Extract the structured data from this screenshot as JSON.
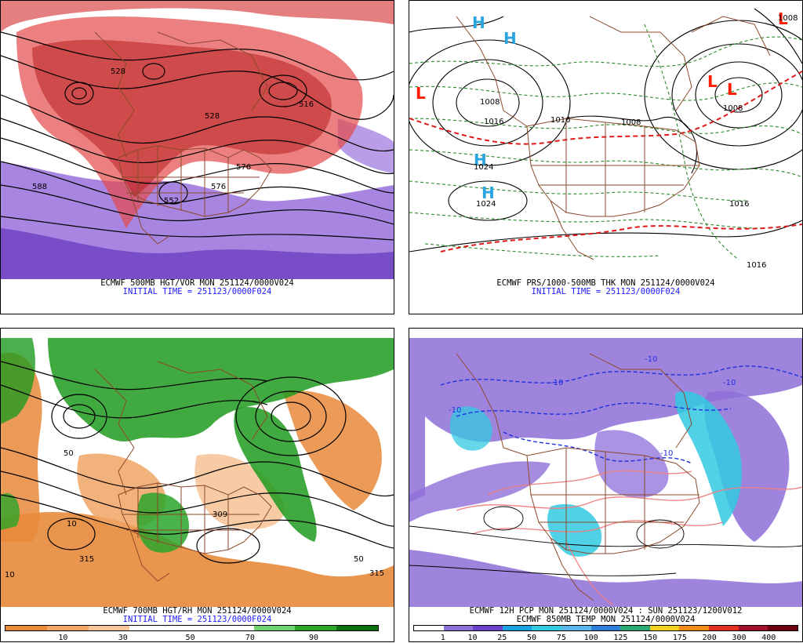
{
  "panels": {
    "tl": {
      "caption1": "ECMWF 500MB HGT/VOR MON 251124/0000V024",
      "caption2": "INITIAL TIME = 251123/0000F024",
      "contour_labels": [
        "576",
        "528",
        "552",
        "576",
        "588",
        "528",
        "516"
      ]
    },
    "tr": {
      "caption1": "ECMWF PRS/1000-500MB THK MON 251124/0000V024",
      "caption2": "INITIAL TIME = 251123/0000F024",
      "pressure_labels": [
        "1008",
        "1016",
        "1016",
        "1008",
        "1024",
        "1024",
        "1016",
        "1008",
        "1016",
        "1008"
      ],
      "centers": [
        "H",
        "H",
        "H",
        "H",
        "L",
        "L",
        "L",
        "L"
      ]
    },
    "bl": {
      "caption1": "ECMWF 700MB HGT/RH MON 251124/0000V024",
      "caption2": "INITIAL TIME = 251123/0000F024",
      "contour_labels": [
        "10",
        "315",
        "309",
        "50",
        "315",
        "10",
        "50"
      ],
      "colorbar_ticks": [
        "10",
        "30",
        "50",
        "70",
        "90"
      ]
    },
    "br": {
      "caption1": "ECMWF 12H PCP MON 251124/0000V024 : SUN 251123/1200V012",
      "caption2": "ECMWF 850MB TEMP MON 251124/0000V024",
      "contour_labels": [
        "-10",
        "-10",
        "-10",
        "-10",
        "-10"
      ],
      "colorbar_ticks": [
        "1",
        "10",
        "25",
        "50",
        "75",
        "100",
        "125",
        "150",
        "175",
        "200",
        "300",
        "400"
      ]
    }
  },
  "colors": {
    "vorticity_red": "#d42a2a",
    "vorticity_purple": "#8a5cd6",
    "rh_green": "#1f9a1f",
    "rh_orange": "#e8893a",
    "pcp_purple": "#8e6fd8",
    "pcp_cyan": "#33c9e0",
    "temp_blue": "#2030e0",
    "temp_pink": "#f08080",
    "caption_blue": "#1a1aff",
    "map_brown": "#8b4a2b",
    "high_blue": "#2aa5e0",
    "low_red": "#ff1a00"
  },
  "colorbars": {
    "rh": [
      "#e8893a",
      "#f0a565",
      "#f7c59a",
      "#ffffff",
      "#ffffff",
      "#ffffff",
      "#6fd16f",
      "#2aa52a",
      "#0e6e0e"
    ],
    "pcp": [
      "#ffffff",
      "#8e6fd8",
      "#6a40c8",
      "#1aa0e0",
      "#33c9e0",
      "#5ab8e8",
      "#2f7fd8",
      "#2aaa70",
      "#f0d020",
      "#f08a1a",
      "#e03020",
      "#a0102a",
      "#6a0010"
    ]
  }
}
